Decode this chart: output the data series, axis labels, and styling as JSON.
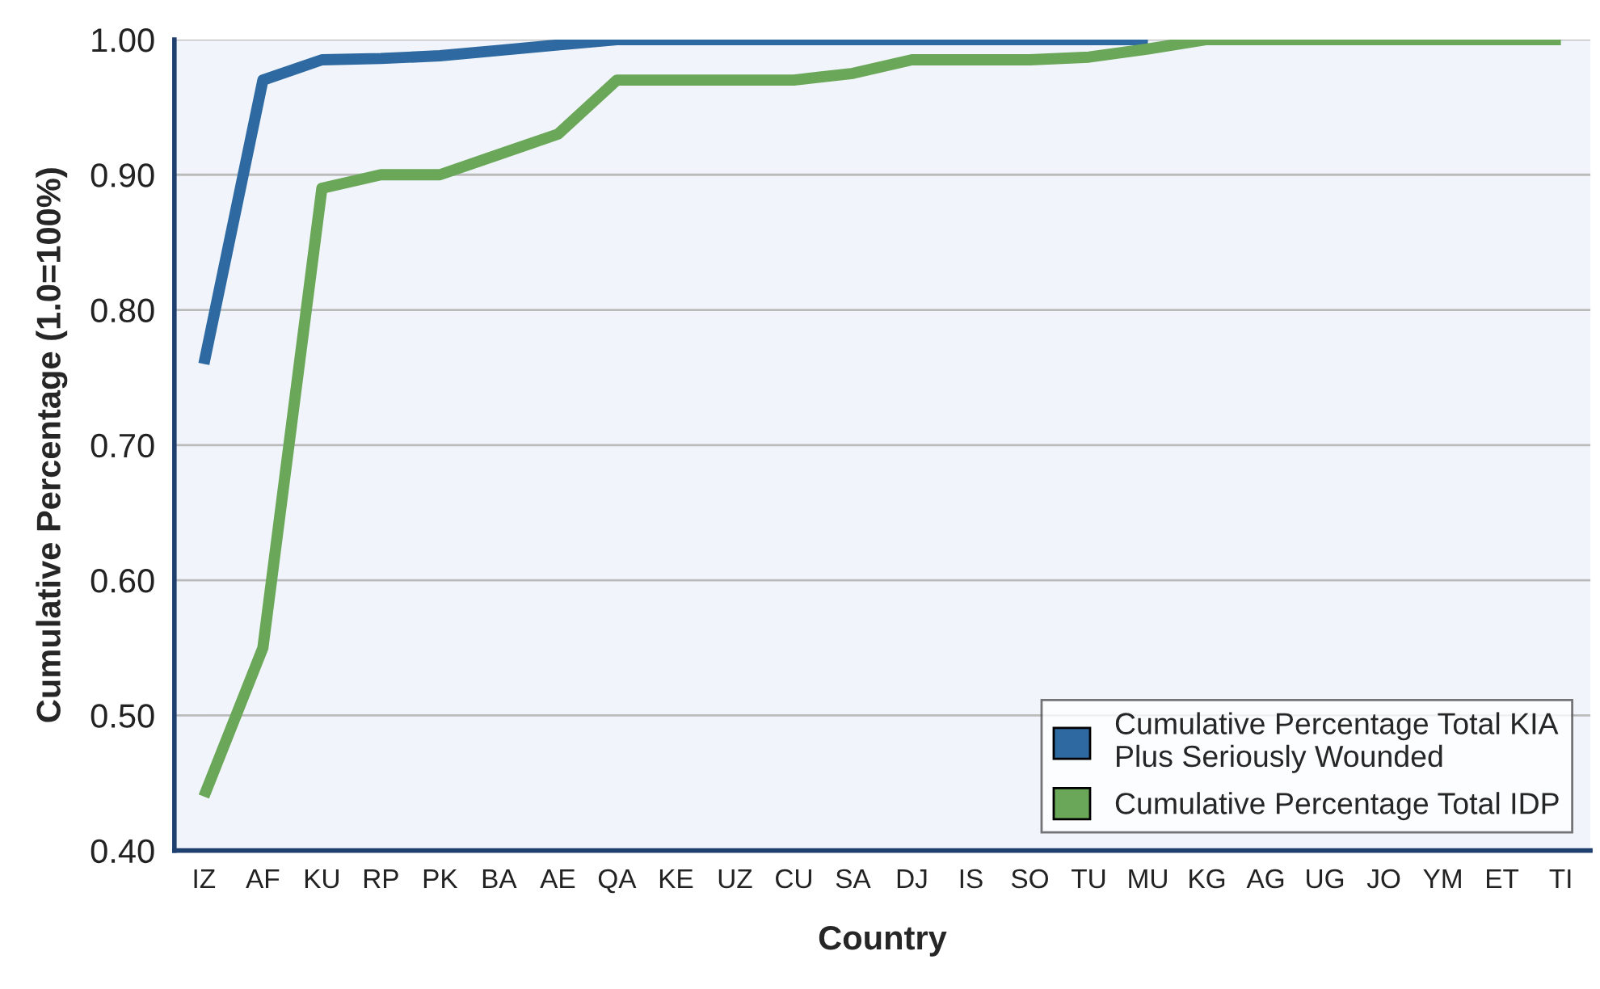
{
  "chart_data": {
    "type": "line",
    "xlabel": "Country",
    "ylabel": "Cumulative Percentage (1.0=100%)",
    "categories": [
      "IZ",
      "AF",
      "KU",
      "RP",
      "PK",
      "BA",
      "AE",
      "QA",
      "KE",
      "UZ",
      "CU",
      "SA",
      "DJ",
      "IS",
      "SO",
      "TU",
      "MU",
      "KG",
      "AG",
      "UG",
      "JO",
      "YM",
      "ET",
      "TI"
    ],
    "series": [
      {
        "name": "Cumulative Percentage Total KIA\nPlus Seriously Wounded",
        "color": "#2e6aa1",
        "values": [
          0.76,
          0.97,
          0.985,
          0.986,
          0.988,
          0.992,
          0.996,
          1.0,
          1.0,
          1.0,
          1.0,
          1.0,
          1.0,
          1.0,
          1.0,
          1.0,
          1.0,
          null,
          null,
          null,
          null,
          null,
          null,
          null
        ]
      },
      {
        "name": "Cumulative Percentage Total IDP",
        "color": "#6aa758",
        "values": [
          0.44,
          0.55,
          0.89,
          0.9,
          0.9,
          0.915,
          0.93,
          0.97,
          0.97,
          0.97,
          0.97,
          0.975,
          0.985,
          0.985,
          0.985,
          0.987,
          0.993,
          1.0,
          1.0,
          1.0,
          1.0,
          1.0,
          1.0,
          1.0
        ]
      }
    ],
    "ylim": [
      0.4,
      1.0
    ],
    "yticks": [
      {
        "value": 0.4,
        "label": "0.40"
      },
      {
        "value": 0.5,
        "label": "0.50"
      },
      {
        "value": 0.6,
        "label": "0.60"
      },
      {
        "value": 0.7,
        "label": "0.70"
      },
      {
        "value": 0.8,
        "label": "0.80"
      },
      {
        "value": 0.9,
        "label": "0.90"
      },
      {
        "value": 1.0,
        "label": "1.00"
      }
    ],
    "grid": "y",
    "legend": "bottom right",
    "marker": "none",
    "line_style": "solid"
  }
}
